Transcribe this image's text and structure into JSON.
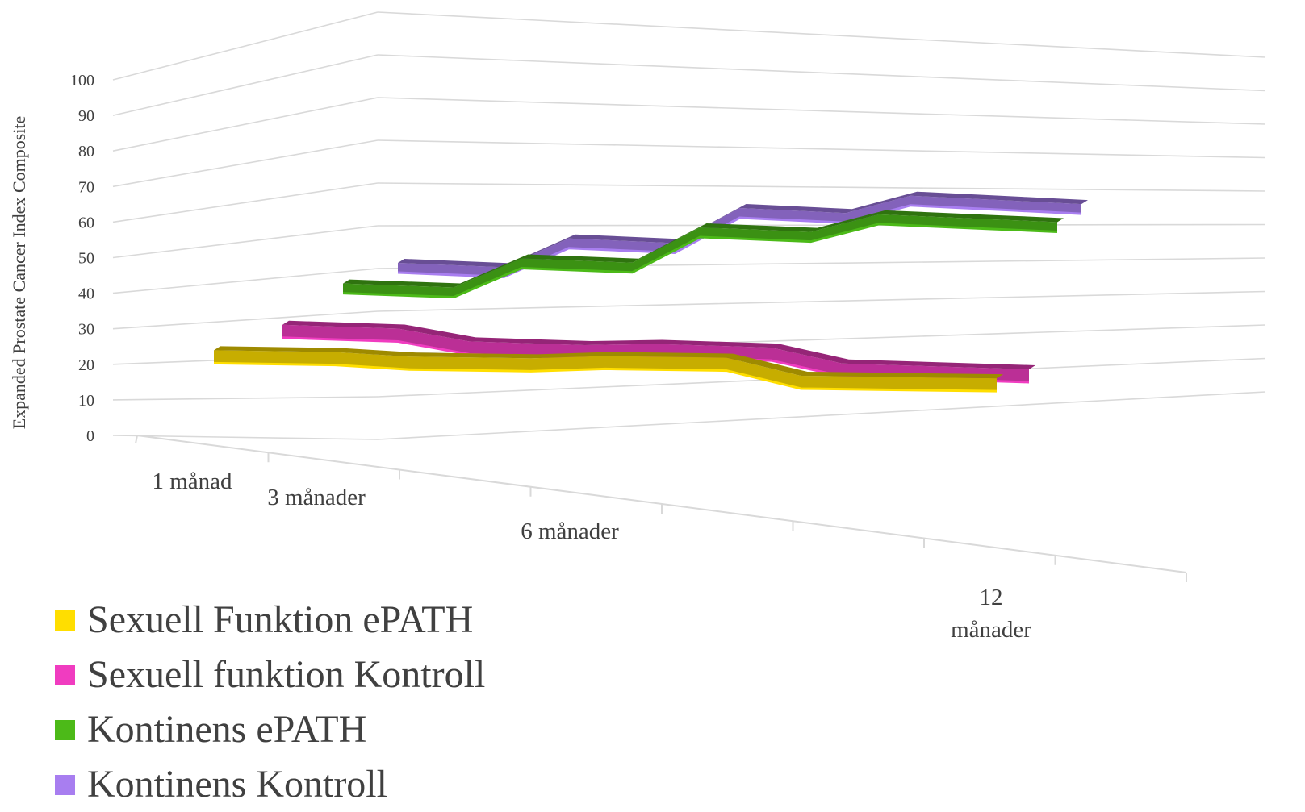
{
  "chart_data": {
    "type": "line",
    "subtype": "3d-ribbon",
    "title": "",
    "xlabel": "",
    "ylabel": "Expanded Prostate Cancer Index Composite",
    "ylim": [
      0,
      100
    ],
    "yticks": [
      0,
      10,
      20,
      30,
      40,
      50,
      60,
      70,
      80,
      90,
      100
    ],
    "categories": [
      "1 månad",
      "3 månader",
      "6 månader",
      "12 månader"
    ],
    "grid": true,
    "legend_position": "bottom-left",
    "series": [
      {
        "name": "Sexuell Funktion ePATH",
        "color": "#ffde00",
        "values": [
          24,
          23,
          24,
          19
        ]
      },
      {
        "name": "Sexuell funktion Kontroll",
        "color": "#f03cc0",
        "values": [
          33,
          30,
          31,
          27
        ]
      },
      {
        "name": "Kontinens ePATH",
        "color": "#4cba18",
        "values": [
          51,
          60,
          71,
          77
        ]
      },
      {
        "name": "Kontinens Kontroll",
        "color": "#a87ef0",
        "values": [
          60,
          69,
          80,
          86
        ]
      }
    ]
  }
}
